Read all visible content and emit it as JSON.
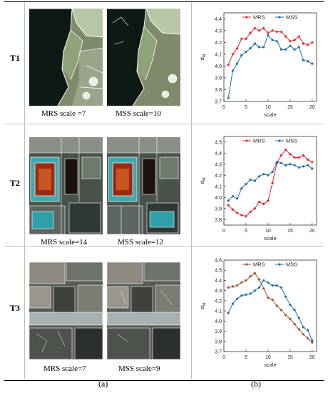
{
  "rows": [
    {
      "label": "T1",
      "caption_left": "MRS scale =7",
      "caption_right": "MSS scale=10"
    },
    {
      "label": "T2",
      "caption_left": "MRS scale=14",
      "caption_right": "MSS scale=12"
    },
    {
      "label": "T3",
      "caption_left": "MRS scale=7",
      "caption_right": "MSS scale=9"
    }
  ],
  "sublabels": {
    "a": "(a)",
    "b": "(b)"
  },
  "colors": {
    "mrs_t1t2": "#e8232a",
    "mss": "#1f6fa6",
    "mrs_t3": "#a0522d"
  },
  "chart_data": [
    {
      "type": "line",
      "xlabel": "scale",
      "ylabel": "d_M",
      "xlim": [
        0,
        21
      ],
      "ylim": [
        3.7,
        4.45
      ],
      "xticks": [
        0,
        5,
        10,
        15,
        20
      ],
      "yticks": [
        3.7,
        3.8,
        3.9,
        4.0,
        4.1,
        4.2,
        4.3,
        4.4
      ],
      "legend": "top",
      "x": [
        1,
        2,
        3,
        4,
        5,
        6,
        7,
        8,
        9,
        10,
        11,
        12,
        13,
        14,
        15,
        16,
        17,
        18,
        19,
        20
      ],
      "series": [
        {
          "name": "MRS",
          "color": "#e8232a",
          "marker": "diamond",
          "values": [
            4.01,
            4.1,
            4.15,
            4.23,
            4.23,
            4.28,
            4.32,
            4.3,
            4.32,
            4.28,
            4.3,
            4.29,
            4.29,
            4.25,
            4.21,
            4.22,
            4.25,
            4.19,
            4.18,
            4.2
          ]
        },
        {
          "name": "MSS",
          "color": "#1f6fa6",
          "marker": "dot",
          "values": [
            3.73,
            3.96,
            4.02,
            4.09,
            4.12,
            4.15,
            4.19,
            4.16,
            4.16,
            4.26,
            4.22,
            4.21,
            4.14,
            4.14,
            4.17,
            4.14,
            4.16,
            4.05,
            4.04,
            4.02
          ]
        }
      ]
    },
    {
      "type": "line",
      "xlabel": "scale",
      "ylabel": "d_M",
      "xlim": [
        0,
        21
      ],
      "ylim": [
        3.75,
        4.55
      ],
      "xticks": [
        0,
        5,
        10,
        15,
        20
      ],
      "yticks": [
        3.8,
        3.9,
        4.0,
        4.1,
        4.2,
        4.3,
        4.4,
        4.5
      ],
      "legend": "top",
      "x": [
        1,
        2,
        3,
        4,
        5,
        6,
        7,
        8,
        9,
        10,
        11,
        12,
        13,
        14,
        15,
        16,
        17,
        18,
        19,
        20
      ],
      "series": [
        {
          "name": "MRS",
          "color": "#e8232a",
          "marker": "diamond",
          "values": [
            3.93,
            3.89,
            3.86,
            3.84,
            3.83,
            3.87,
            3.9,
            3.96,
            3.94,
            3.97,
            4.13,
            4.31,
            4.38,
            4.43,
            4.39,
            4.36,
            4.36,
            4.38,
            4.34,
            4.32
          ]
        },
        {
          "name": "MSS",
          "color": "#1f6fa6",
          "marker": "dot",
          "values": [
            3.97,
            4.01,
            3.99,
            4.08,
            4.12,
            4.16,
            4.15,
            4.19,
            4.21,
            4.2,
            4.23,
            4.32,
            4.31,
            4.29,
            4.3,
            4.29,
            4.27,
            4.28,
            4.29,
            4.26
          ]
        }
      ]
    },
    {
      "type": "line",
      "xlabel": "scale",
      "ylabel": "d_M",
      "xlim": [
        0,
        21
      ],
      "ylim": [
        3.7,
        4.6
      ],
      "xticks": [
        0,
        5,
        10,
        15,
        20
      ],
      "yticks": [
        3.7,
        3.8,
        3.9,
        4.0,
        4.1,
        4.2,
        4.3,
        4.4,
        4.5,
        4.6
      ],
      "legend": "top",
      "x": [
        1,
        2,
        3,
        4,
        5,
        6,
        7,
        8,
        9,
        10,
        11,
        12,
        13,
        14,
        15,
        16,
        17,
        18,
        19,
        20
      ],
      "series": [
        {
          "name": "MRS",
          "color": "#a0522d",
          "marker": "dot",
          "values": [
            4.33,
            4.34,
            4.35,
            4.38,
            4.4,
            4.44,
            4.47,
            4.41,
            4.32,
            4.23,
            4.21,
            4.15,
            4.11,
            4.06,
            4.02,
            3.97,
            3.92,
            3.87,
            3.83,
            3.79
          ]
        },
        {
          "name": "MSS",
          "color": "#1f6fa6",
          "marker": "dot",
          "values": [
            4.08,
            4.17,
            4.22,
            4.25,
            4.26,
            4.27,
            4.3,
            4.33,
            4.4,
            4.38,
            4.35,
            4.35,
            4.33,
            4.24,
            4.16,
            4.11,
            4.03,
            3.94,
            3.91,
            3.81
          ]
        }
      ]
    }
  ]
}
